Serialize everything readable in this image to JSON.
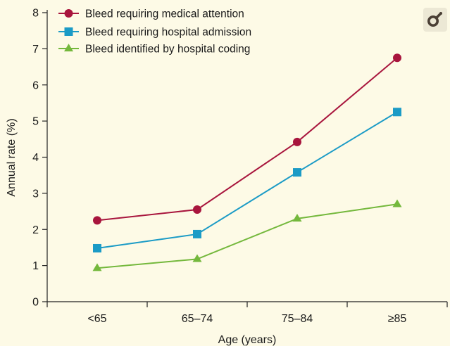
{
  "chart_data": {
    "type": "line",
    "title": "",
    "xlabel": "Age (years)",
    "ylabel": "Annual rate (%)",
    "ylim": [
      0,
      8
    ],
    "yticks": [
      0,
      1,
      2,
      3,
      4,
      5,
      6,
      7,
      8
    ],
    "categories": [
      "<65",
      "65–74",
      "75–84",
      "≥85"
    ],
    "legend_position": "top-left",
    "grid": false,
    "series": [
      {
        "name": "Bleed requiring medical attention",
        "marker": "circle",
        "color": "#a8153d",
        "values": [
          2.25,
          2.55,
          4.42,
          6.75
        ]
      },
      {
        "name": "Bleed requiring hospital admission",
        "marker": "square",
        "color": "#1b9bc6",
        "values": [
          1.48,
          1.87,
          3.58,
          5.25
        ]
      },
      {
        "name": "Bleed identified by hospital coding",
        "marker": "triangle",
        "color": "#74b83c",
        "values": [
          0.93,
          1.18,
          2.3,
          2.7
        ]
      }
    ]
  },
  "icons": {
    "sex_symbol": "male-symbol-icon",
    "sex_symbol_color": "#4a3f35",
    "sex_badge_bg": "#ece8d5"
  }
}
